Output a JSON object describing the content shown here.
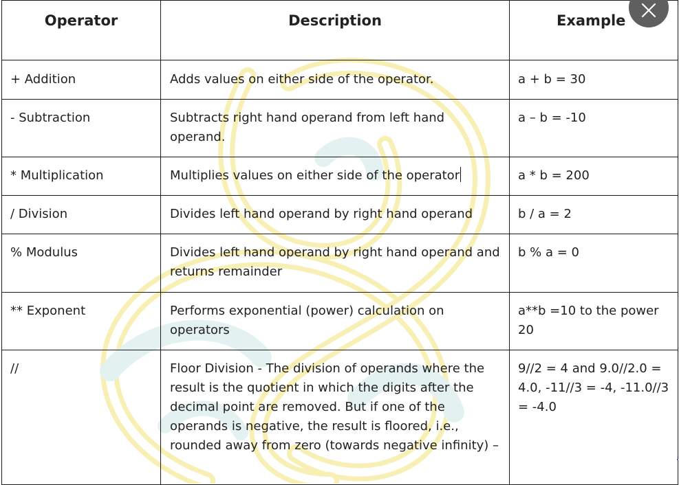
{
  "table": {
    "headers": [
      "Operator",
      "Description",
      "Example"
    ],
    "rows": [
      {
        "operator": "+ Addition",
        "description": "Adds values on either side of the operator.",
        "example": "a + b = 30"
      },
      {
        "operator": "- Subtraction",
        "description": "Subtracts right hand operand from left hand operand.",
        "example": "a – b = -10"
      },
      {
        "operator": "* Multiplication",
        "description": "Multiplies values on either side of the operator",
        "example": "a * b = 200"
      },
      {
        "operator": "/ Division",
        "description": "Divides left hand operand by right hand operand",
        "example": "b / a = 2"
      },
      {
        "operator": "% Modulus",
        "description": "Divides left hand operand by right hand operand and returns remainder",
        "example": "b % a = 0"
      },
      {
        "operator": "** Exponent",
        "description": "Performs exponential (power) calculation on operators",
        "example": "a**b =10 to the power 20"
      },
      {
        "operator": "//",
        "description": "Floor Division - The division of operands where the result is the quotient in which the digits after the decimal point are removed. But if one of the operands is negative, the result is floored, i.e., rounded away from zero (towards negative infinity) –",
        "example": "9//2 = 4 and 9.0//2.0 = 4.0, -11//3 = -4, -11.0//3 = -4.0"
      }
    ]
  },
  "overlay": {
    "close_icon": "close-icon",
    "close_button_color": "#5f5f5f"
  },
  "colors": {
    "watermark_yellow": "#f6e58d",
    "watermark_teal": "#bfe6e3",
    "border": "#1a1a1a"
  }
}
